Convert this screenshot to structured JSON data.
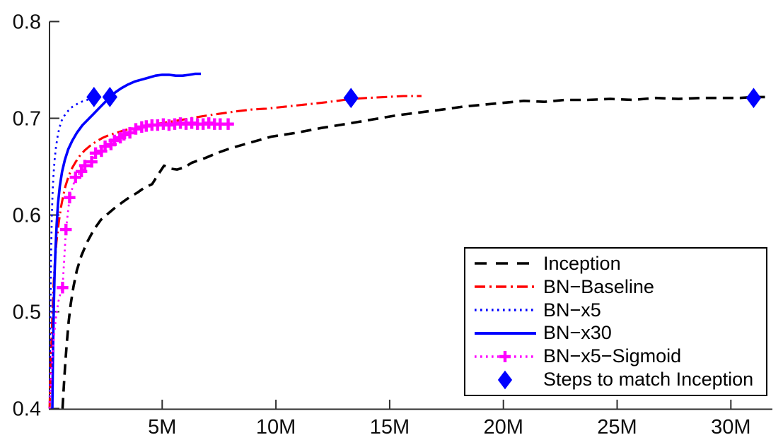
{
  "chart_data": {
    "type": "line",
    "title": "",
    "xlabel": "",
    "ylabel": "",
    "xlim": [
      0,
      31.8
    ],
    "ylim": [
      0.4,
      0.8
    ],
    "grid": false,
    "legend_position": "lower right",
    "x_ticks": [
      {
        "value": 5,
        "label": "5M"
      },
      {
        "value": 10,
        "label": "10M"
      },
      {
        "value": 15,
        "label": "15M"
      },
      {
        "value": 20,
        "label": "20M"
      },
      {
        "value": 25,
        "label": "25M"
      },
      {
        "value": 30,
        "label": "30M"
      }
    ],
    "y_ticks": [
      {
        "value": 0.4,
        "label": "0.4"
      },
      {
        "value": 0.5,
        "label": "0.5"
      },
      {
        "value": 0.6,
        "label": "0.6"
      },
      {
        "value": 0.7,
        "label": "0.7"
      },
      {
        "value": 0.8,
        "label": "0.8"
      }
    ],
    "series": [
      {
        "name": "inception",
        "label": "Inception",
        "color": "#000000",
        "line": "dashed",
        "marker": "none",
        "points": [
          [
            0.62,
            0.4
          ],
          [
            0.68,
            0.425
          ],
          [
            0.74,
            0.447
          ],
          [
            0.81,
            0.468
          ],
          [
            0.89,
            0.49
          ],
          [
            0.98,
            0.508
          ],
          [
            1.1,
            0.526
          ],
          [
            1.25,
            0.543
          ],
          [
            1.45,
            0.558
          ],
          [
            1.7,
            0.572
          ],
          [
            2.0,
            0.585
          ],
          [
            2.3,
            0.595
          ],
          [
            2.6,
            0.601
          ],
          [
            2.95,
            0.608
          ],
          [
            3.3,
            0.614
          ],
          [
            3.6,
            0.619
          ],
          [
            3.9,
            0.623
          ],
          [
            4.2,
            0.628
          ],
          [
            4.56,
            0.632
          ],
          [
            4.8,
            0.641
          ],
          [
            5.08,
            0.651
          ],
          [
            5.35,
            0.648
          ],
          [
            5.65,
            0.647
          ],
          [
            5.95,
            0.649
          ],
          [
            6.3,
            0.654
          ],
          [
            6.9,
            0.659
          ],
          [
            7.4,
            0.664
          ],
          [
            8.0,
            0.669
          ],
          [
            8.9,
            0.675
          ],
          [
            9.8,
            0.681
          ],
          [
            10.9,
            0.685
          ],
          [
            12.0,
            0.69
          ],
          [
            13.3,
            0.695
          ],
          [
            14.3,
            0.699
          ],
          [
            15.3,
            0.703
          ],
          [
            16.3,
            0.706
          ],
          [
            17.3,
            0.709
          ],
          [
            18.2,
            0.712
          ],
          [
            19.1,
            0.714
          ],
          [
            20.0,
            0.716
          ],
          [
            20.9,
            0.718
          ],
          [
            21.8,
            0.717
          ],
          [
            22.7,
            0.719
          ],
          [
            23.7,
            0.719
          ],
          [
            24.7,
            0.72
          ],
          [
            25.7,
            0.719
          ],
          [
            26.7,
            0.721
          ],
          [
            27.7,
            0.72
          ],
          [
            28.7,
            0.721
          ],
          [
            29.6,
            0.721
          ],
          [
            30.4,
            0.721
          ],
          [
            31.0,
            0.722
          ],
          [
            31.5,
            0.722
          ]
        ]
      },
      {
        "name": "bn-baseline",
        "label": "BN−Baseline",
        "color": "#ff0000",
        "line": "dashdot",
        "marker": "none",
        "points": [
          [
            0.05,
            0.4
          ],
          [
            0.08,
            0.43
          ],
          [
            0.12,
            0.46
          ],
          [
            0.17,
            0.495
          ],
          [
            0.22,
            0.525
          ],
          [
            0.28,
            0.55
          ],
          [
            0.35,
            0.572
          ],
          [
            0.45,
            0.592
          ],
          [
            0.55,
            0.608
          ],
          [
            0.65,
            0.62
          ],
          [
            0.75,
            0.63
          ],
          [
            0.9,
            0.641
          ],
          [
            1.05,
            0.649
          ],
          [
            1.2,
            0.655
          ],
          [
            1.4,
            0.662
          ],
          [
            1.6,
            0.667
          ],
          [
            1.85,
            0.672
          ],
          [
            2.1,
            0.676
          ],
          [
            2.4,
            0.68
          ],
          [
            2.7,
            0.683
          ],
          [
            3.0,
            0.685
          ],
          [
            3.4,
            0.688
          ],
          [
            3.8,
            0.69
          ],
          [
            4.2,
            0.692
          ],
          [
            4.6,
            0.694
          ],
          [
            5.0,
            0.695
          ],
          [
            5.5,
            0.697
          ],
          [
            6.0,
            0.699
          ],
          [
            6.5,
            0.701
          ],
          [
            7.0,
            0.703
          ],
          [
            7.6,
            0.705
          ],
          [
            8.2,
            0.707
          ],
          [
            8.9,
            0.709
          ],
          [
            9.6,
            0.71
          ],
          [
            10.4,
            0.712
          ],
          [
            11.2,
            0.714
          ],
          [
            12.0,
            0.716
          ],
          [
            12.7,
            0.718
          ],
          [
            13.3,
            0.72
          ],
          [
            14.0,
            0.721
          ],
          [
            14.8,
            0.722
          ],
          [
            15.6,
            0.723
          ],
          [
            16.4,
            0.723
          ]
        ]
      },
      {
        "name": "bn-x5",
        "label": "BN−x5",
        "color": "#0000ff",
        "line": "dotted",
        "marker": "none",
        "points": [
          [
            0.05,
            0.4
          ],
          [
            0.065,
            0.445
          ],
          [
            0.08,
            0.485
          ],
          [
            0.095,
            0.52
          ],
          [
            0.11,
            0.55
          ],
          [
            0.13,
            0.578
          ],
          [
            0.15,
            0.6
          ],
          [
            0.18,
            0.622
          ],
          [
            0.22,
            0.641
          ],
          [
            0.27,
            0.657
          ],
          [
            0.33,
            0.67
          ],
          [
            0.4,
            0.681
          ],
          [
            0.48,
            0.69
          ],
          [
            0.57,
            0.697
          ],
          [
            0.68,
            0.702
          ],
          [
            0.8,
            0.706
          ],
          [
            1.0,
            0.711
          ],
          [
            1.2,
            0.714
          ],
          [
            1.45,
            0.717
          ],
          [
            1.7,
            0.719
          ],
          [
            1.9,
            0.721
          ],
          [
            2.1,
            0.722
          ]
        ]
      },
      {
        "name": "bn-x30",
        "label": "BN−x30",
        "color": "#0000ff",
        "line": "solid",
        "marker": "none",
        "points": [
          [
            0.17,
            0.4
          ],
          [
            0.19,
            0.44
          ],
          [
            0.21,
            0.475
          ],
          [
            0.24,
            0.51
          ],
          [
            0.27,
            0.54
          ],
          [
            0.31,
            0.565
          ],
          [
            0.36,
            0.59
          ],
          [
            0.42,
            0.612
          ],
          [
            0.5,
            0.63
          ],
          [
            0.6,
            0.645
          ],
          [
            0.72,
            0.657
          ],
          [
            0.87,
            0.668
          ],
          [
            1.05,
            0.677
          ],
          [
            1.25,
            0.685
          ],
          [
            1.5,
            0.693
          ],
          [
            1.75,
            0.699
          ],
          [
            2.0,
            0.705
          ],
          [
            2.25,
            0.711
          ],
          [
            2.5,
            0.717
          ],
          [
            2.7,
            0.722
          ],
          [
            2.95,
            0.727
          ],
          [
            3.2,
            0.731
          ],
          [
            3.5,
            0.735
          ],
          [
            3.8,
            0.738
          ],
          [
            4.1,
            0.74
          ],
          [
            4.4,
            0.742
          ],
          [
            4.7,
            0.744
          ],
          [
            5.0,
            0.745
          ],
          [
            5.3,
            0.745
          ],
          [
            5.6,
            0.744
          ],
          [
            5.9,
            0.744
          ],
          [
            6.2,
            0.745
          ],
          [
            6.45,
            0.746
          ],
          [
            6.7,
            0.746
          ]
        ]
      },
      {
        "name": "bn-x5-sigmoid",
        "label": "BN−x5−Sigmoid",
        "color": "#ff00ff",
        "line": "dotted",
        "marker": "plus",
        "points": [
          [
            0.05,
            0.4
          ],
          [
            0.09,
            0.42
          ],
          [
            0.14,
            0.442
          ],
          [
            0.2,
            0.462
          ],
          [
            0.27,
            0.481
          ],
          [
            0.35,
            0.498
          ],
          [
            0.44,
            0.511
          ],
          [
            0.53,
            0.519
          ],
          [
            0.62,
            0.525
          ],
          [
            0.77,
            0.585
          ],
          [
            0.93,
            0.618
          ],
          [
            1.19,
            0.639
          ],
          [
            1.45,
            0.645
          ],
          [
            1.6,
            0.651
          ],
          [
            1.9,
            0.655
          ],
          [
            2.07,
            0.664
          ],
          [
            2.33,
            0.666
          ],
          [
            2.49,
            0.671
          ],
          [
            2.75,
            0.673
          ],
          [
            2.9,
            0.677
          ],
          [
            3.16,
            0.68
          ],
          [
            3.32,
            0.683
          ],
          [
            3.58,
            0.685
          ],
          [
            3.84,
            0.689
          ],
          [
            4.1,
            0.691
          ],
          [
            4.3,
            0.692
          ],
          [
            4.55,
            0.693
          ],
          [
            4.8,
            0.693
          ],
          [
            5.05,
            0.694
          ],
          [
            5.3,
            0.693
          ],
          [
            5.55,
            0.694
          ],
          [
            5.8,
            0.695
          ],
          [
            6.05,
            0.694
          ],
          [
            6.3,
            0.695
          ],
          [
            6.55,
            0.694
          ],
          [
            6.8,
            0.694
          ],
          [
            7.05,
            0.695
          ],
          [
            7.3,
            0.694
          ],
          [
            7.55,
            0.694
          ],
          [
            7.9,
            0.694
          ]
        ],
        "marker_points": [
          [
            0.62,
            0.525
          ],
          [
            0.77,
            0.585
          ],
          [
            0.93,
            0.618
          ],
          [
            1.19,
            0.639
          ],
          [
            1.45,
            0.645
          ],
          [
            1.6,
            0.651
          ],
          [
            1.9,
            0.655
          ],
          [
            2.07,
            0.664
          ],
          [
            2.33,
            0.666
          ],
          [
            2.49,
            0.671
          ],
          [
            2.75,
            0.673
          ],
          [
            2.9,
            0.677
          ],
          [
            3.16,
            0.68
          ],
          [
            3.32,
            0.683
          ],
          [
            3.58,
            0.685
          ],
          [
            3.84,
            0.689
          ],
          [
            4.1,
            0.691
          ],
          [
            4.3,
            0.692
          ],
          [
            4.55,
            0.693
          ],
          [
            4.8,
            0.693
          ],
          [
            5.05,
            0.694
          ],
          [
            5.3,
            0.693
          ],
          [
            5.55,
            0.694
          ],
          [
            5.8,
            0.695
          ],
          [
            6.05,
            0.694
          ],
          [
            6.3,
            0.695
          ],
          [
            6.55,
            0.694
          ],
          [
            6.8,
            0.694
          ],
          [
            7.05,
            0.695
          ],
          [
            7.3,
            0.694
          ],
          [
            7.55,
            0.694
          ],
          [
            7.9,
            0.694
          ]
        ]
      },
      {
        "name": "steps-to-match-inception",
        "label": "Steps to match Inception",
        "color": "#0000ff",
        "line": "none",
        "marker": "diamond",
        "points": [
          [
            2.0,
            0.722
          ],
          [
            2.7,
            0.722
          ],
          [
            13.3,
            0.721
          ],
          [
            31.0,
            0.721
          ]
        ]
      }
    ]
  }
}
